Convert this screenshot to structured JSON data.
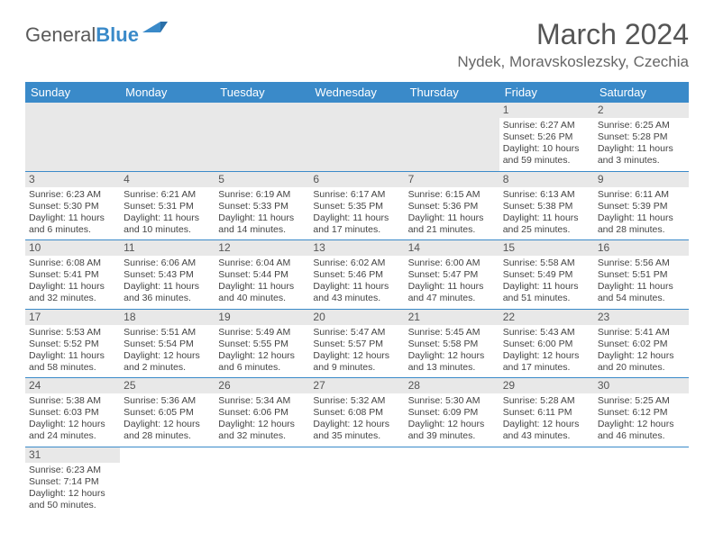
{
  "logo": {
    "text1": "General",
    "text2": "Blue"
  },
  "title": "March 2024",
  "location": "Nydek, Moravskoslezsky, Czechia",
  "colors": {
    "header_bg": "#3a8ac9",
    "header_text": "#ffffff",
    "daynum_bg": "#e8e8e8",
    "border": "#3a8ac9",
    "text": "#444444"
  },
  "day_headers": [
    "Sunday",
    "Monday",
    "Tuesday",
    "Wednesday",
    "Thursday",
    "Friday",
    "Saturday"
  ],
  "weeks": [
    [
      null,
      null,
      null,
      null,
      null,
      {
        "n": "1",
        "sunrise": "Sunrise: 6:27 AM",
        "sunset": "Sunset: 5:26 PM",
        "day": "Daylight: 10 hours and 59 minutes."
      },
      {
        "n": "2",
        "sunrise": "Sunrise: 6:25 AM",
        "sunset": "Sunset: 5:28 PM",
        "day": "Daylight: 11 hours and 3 minutes."
      }
    ],
    [
      {
        "n": "3",
        "sunrise": "Sunrise: 6:23 AM",
        "sunset": "Sunset: 5:30 PM",
        "day": "Daylight: 11 hours and 6 minutes."
      },
      {
        "n": "4",
        "sunrise": "Sunrise: 6:21 AM",
        "sunset": "Sunset: 5:31 PM",
        "day": "Daylight: 11 hours and 10 minutes."
      },
      {
        "n": "5",
        "sunrise": "Sunrise: 6:19 AM",
        "sunset": "Sunset: 5:33 PM",
        "day": "Daylight: 11 hours and 14 minutes."
      },
      {
        "n": "6",
        "sunrise": "Sunrise: 6:17 AM",
        "sunset": "Sunset: 5:35 PM",
        "day": "Daylight: 11 hours and 17 minutes."
      },
      {
        "n": "7",
        "sunrise": "Sunrise: 6:15 AM",
        "sunset": "Sunset: 5:36 PM",
        "day": "Daylight: 11 hours and 21 minutes."
      },
      {
        "n": "8",
        "sunrise": "Sunrise: 6:13 AM",
        "sunset": "Sunset: 5:38 PM",
        "day": "Daylight: 11 hours and 25 minutes."
      },
      {
        "n": "9",
        "sunrise": "Sunrise: 6:11 AM",
        "sunset": "Sunset: 5:39 PM",
        "day": "Daylight: 11 hours and 28 minutes."
      }
    ],
    [
      {
        "n": "10",
        "sunrise": "Sunrise: 6:08 AM",
        "sunset": "Sunset: 5:41 PM",
        "day": "Daylight: 11 hours and 32 minutes."
      },
      {
        "n": "11",
        "sunrise": "Sunrise: 6:06 AM",
        "sunset": "Sunset: 5:43 PM",
        "day": "Daylight: 11 hours and 36 minutes."
      },
      {
        "n": "12",
        "sunrise": "Sunrise: 6:04 AM",
        "sunset": "Sunset: 5:44 PM",
        "day": "Daylight: 11 hours and 40 minutes."
      },
      {
        "n": "13",
        "sunrise": "Sunrise: 6:02 AM",
        "sunset": "Sunset: 5:46 PM",
        "day": "Daylight: 11 hours and 43 minutes."
      },
      {
        "n": "14",
        "sunrise": "Sunrise: 6:00 AM",
        "sunset": "Sunset: 5:47 PM",
        "day": "Daylight: 11 hours and 47 minutes."
      },
      {
        "n": "15",
        "sunrise": "Sunrise: 5:58 AM",
        "sunset": "Sunset: 5:49 PM",
        "day": "Daylight: 11 hours and 51 minutes."
      },
      {
        "n": "16",
        "sunrise": "Sunrise: 5:56 AM",
        "sunset": "Sunset: 5:51 PM",
        "day": "Daylight: 11 hours and 54 minutes."
      }
    ],
    [
      {
        "n": "17",
        "sunrise": "Sunrise: 5:53 AM",
        "sunset": "Sunset: 5:52 PM",
        "day": "Daylight: 11 hours and 58 minutes."
      },
      {
        "n": "18",
        "sunrise": "Sunrise: 5:51 AM",
        "sunset": "Sunset: 5:54 PM",
        "day": "Daylight: 12 hours and 2 minutes."
      },
      {
        "n": "19",
        "sunrise": "Sunrise: 5:49 AM",
        "sunset": "Sunset: 5:55 PM",
        "day": "Daylight: 12 hours and 6 minutes."
      },
      {
        "n": "20",
        "sunrise": "Sunrise: 5:47 AM",
        "sunset": "Sunset: 5:57 PM",
        "day": "Daylight: 12 hours and 9 minutes."
      },
      {
        "n": "21",
        "sunrise": "Sunrise: 5:45 AM",
        "sunset": "Sunset: 5:58 PM",
        "day": "Daylight: 12 hours and 13 minutes."
      },
      {
        "n": "22",
        "sunrise": "Sunrise: 5:43 AM",
        "sunset": "Sunset: 6:00 PM",
        "day": "Daylight: 12 hours and 17 minutes."
      },
      {
        "n": "23",
        "sunrise": "Sunrise: 5:41 AM",
        "sunset": "Sunset: 6:02 PM",
        "day": "Daylight: 12 hours and 20 minutes."
      }
    ],
    [
      {
        "n": "24",
        "sunrise": "Sunrise: 5:38 AM",
        "sunset": "Sunset: 6:03 PM",
        "day": "Daylight: 12 hours and 24 minutes."
      },
      {
        "n": "25",
        "sunrise": "Sunrise: 5:36 AM",
        "sunset": "Sunset: 6:05 PM",
        "day": "Daylight: 12 hours and 28 minutes."
      },
      {
        "n": "26",
        "sunrise": "Sunrise: 5:34 AM",
        "sunset": "Sunset: 6:06 PM",
        "day": "Daylight: 12 hours and 32 minutes."
      },
      {
        "n": "27",
        "sunrise": "Sunrise: 5:32 AM",
        "sunset": "Sunset: 6:08 PM",
        "day": "Daylight: 12 hours and 35 minutes."
      },
      {
        "n": "28",
        "sunrise": "Sunrise: 5:30 AM",
        "sunset": "Sunset: 6:09 PM",
        "day": "Daylight: 12 hours and 39 minutes."
      },
      {
        "n": "29",
        "sunrise": "Sunrise: 5:28 AM",
        "sunset": "Sunset: 6:11 PM",
        "day": "Daylight: 12 hours and 43 minutes."
      },
      {
        "n": "30",
        "sunrise": "Sunrise: 5:25 AM",
        "sunset": "Sunset: 6:12 PM",
        "day": "Daylight: 12 hours and 46 minutes."
      }
    ],
    [
      {
        "n": "31",
        "sunrise": "Sunrise: 6:23 AM",
        "sunset": "Sunset: 7:14 PM",
        "day": "Daylight: 12 hours and 50 minutes."
      },
      null,
      null,
      null,
      null,
      null,
      null
    ]
  ]
}
